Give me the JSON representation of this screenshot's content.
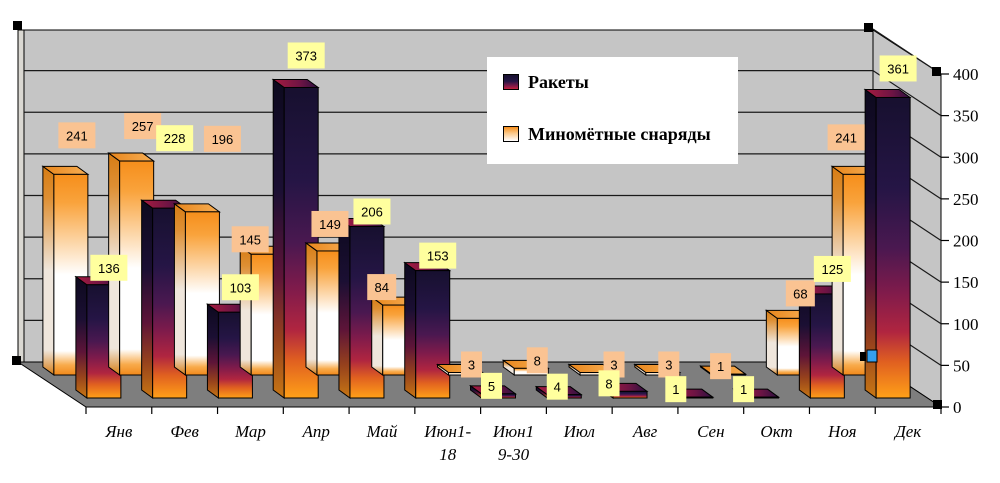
{
  "chart_data": {
    "type": "bar",
    "style": "3d-clustered-column",
    "title": "",
    "xlabel": "",
    "ylabel": "",
    "categories": [
      "Янв",
      "Фев",
      "Мар",
      "Апр",
      "Май",
      "Июн1-18",
      "Июн1 9-30",
      "Июл",
      "Авг",
      "Сен",
      "Окт",
      "Ноя",
      "Дек"
    ],
    "category_display_lines": [
      [
        "Янв"
      ],
      [
        "Фев"
      ],
      [
        "Мар"
      ],
      [
        "Апр"
      ],
      [
        "Май"
      ],
      [
        "Июн1-",
        "18"
      ],
      [
        "Июн1",
        "9-30"
      ],
      [
        "Июл"
      ],
      [
        "Авг"
      ],
      [
        "Сен"
      ],
      [
        "Окт"
      ],
      [
        "Ноя"
      ],
      [
        "Дек"
      ]
    ],
    "series": [
      {
        "name": "Ракеты",
        "row": "front",
        "values": [
          136,
          228,
          103,
          373,
          206,
          153,
          5,
          4,
          8,
          1,
          1,
          125,
          361
        ],
        "label_bg": "#FFFF9E"
      },
      {
        "name": "Миномётные снаряды",
        "row": "back",
        "values": [
          241,
          257,
          196,
          145,
          149,
          84,
          3,
          8,
          3,
          3,
          1,
          68,
          241
        ],
        "label_bg": "#FAC392"
      }
    ],
    "y_axis": {
      "min": 0,
      "max": 400,
      "step": 50,
      "side": "right",
      "ticks": [
        0,
        50,
        100,
        150,
        200,
        250,
        300,
        350,
        400
      ]
    },
    "grid": true,
    "legend": {
      "position": "top-center",
      "bg": "#FFFFFF"
    },
    "colors": {
      "back_wall": "#C5C5C5",
      "wall_edge_strip": "#DAD8D2",
      "floor": "#7E7E7E",
      "outline": "#000000",
      "rockets_gradient": [
        "#17102F",
        "#251545",
        "#4A1850",
        "#801B4B",
        "#B02540",
        "#E06020",
        "#FFA018"
      ],
      "mortar_gradient": [
        "#F68E1B",
        "#F9A33C",
        "#FFFFFF",
        "#F8AB4C",
        "#F1881A"
      ],
      "rockets_top_face": "#A81C40",
      "mortar_top_face": "#E8861C",
      "selection_handle": "#000000",
      "selection_handle_blue": "#35A0EE",
      "label_text": "#000000"
    }
  }
}
